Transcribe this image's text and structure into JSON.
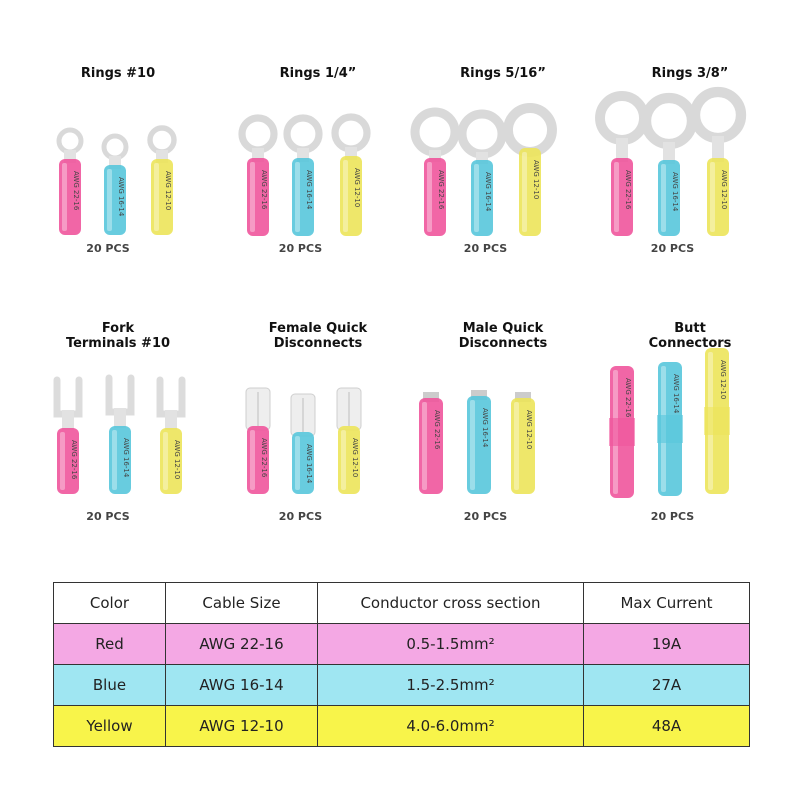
{
  "colors": {
    "pink": "#f0559c",
    "blue": "#58c6dc",
    "yellow": "#ece45a",
    "row_red": "#f4a8e4",
    "row_blue": "#9fe6f2",
    "row_yellow": "#f8f44a"
  },
  "terminals": [
    {
      "type": "ring",
      "title": "Rings #10",
      "qty": "20 PCS",
      "labels": [
        "AWG 22-16",
        "AWG 16-14",
        "AWG 12-10"
      ]
    },
    {
      "type": "ring",
      "title": "Rings 1/4”",
      "qty": "20 PCS",
      "labels": [
        "AWG 22-16",
        "AWG 16-14",
        "AWG 12-10"
      ]
    },
    {
      "type": "ring",
      "title": "Rings 5/16”",
      "qty": "20 PCS",
      "labels": [
        "AWG 22-16",
        "AWG 16-14",
        "AWG 12-10"
      ]
    },
    {
      "type": "ring",
      "title": "Rings 3/8”",
      "qty": "20 PCS",
      "labels": [
        "AWG 22-16",
        "AWG 16-14",
        "AWG 12-10"
      ]
    },
    {
      "type": "fork",
      "title": "Fork\nTerminals #10",
      "qty": "20 PCS",
      "labels": [
        "AWG 22-16",
        "AWG 16-14",
        "AWG 12-10"
      ]
    },
    {
      "type": "female",
      "title": "Female Quick\nDisconnects",
      "qty": "20 PCS",
      "labels": [
        "AWG 22-16",
        "AWG 16-14",
        "AWG 12-10"
      ]
    },
    {
      "type": "male",
      "title": "Male Quick\nDisconnects",
      "qty": "20 PCS",
      "labels": [
        "AWG 22-16",
        "AWG 16-14",
        "AWG 12-10"
      ]
    },
    {
      "type": "butt",
      "title": "Butt\nConnectors",
      "qty": "20 PCS",
      "labels": [
        "AWG 22-16",
        "AWG 16-14",
        "AWG 12-10"
      ]
    }
  ],
  "table": {
    "headers": [
      "Color",
      "Cable Size",
      "Conductor cross section",
      "Max Current"
    ],
    "rows": [
      {
        "color": "Red",
        "size": "AWG 22-16",
        "section": "0.5-1.5mm²",
        "current": "19A"
      },
      {
        "color": "Blue",
        "size": "AWG 16-14",
        "section": "1.5-2.5mm²",
        "current": "27A"
      },
      {
        "color": "Yellow",
        "size": "AWG 12-10",
        "section": "4.0-6.0mm²",
        "current": "48A"
      }
    ]
  }
}
